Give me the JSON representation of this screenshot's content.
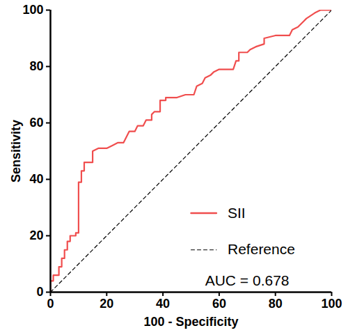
{
  "chart_data": {
    "type": "line",
    "x_label": "100 - Specificity",
    "y_label": "Sensitivity",
    "xlim": [
      0,
      100
    ],
    "ylim": [
      0,
      100
    ],
    "xticks": [
      0,
      20,
      40,
      60,
      80,
      100
    ],
    "yticks": [
      0,
      20,
      40,
      60,
      80,
      100
    ],
    "legend": "lower right",
    "annotations": [
      "AUC = 0.678"
    ],
    "series": [
      {
        "name": "SII",
        "color": "#f04e4e",
        "line_style": "solid",
        "x": [
          0,
          0,
          1,
          1,
          3,
          3,
          4,
          4,
          5,
          5,
          6,
          6,
          7,
          7,
          9,
          9,
          10,
          10,
          11,
          11,
          12,
          12,
          15,
          15,
          17,
          20,
          22,
          24,
          26,
          27,
          28,
          30,
          31,
          33,
          34,
          36,
          36,
          37,
          39,
          39,
          41,
          41,
          45,
          48,
          51,
          52,
          54,
          55,
          57,
          58,
          60,
          65,
          66,
          67,
          67,
          70,
          71,
          73,
          76,
          76,
          80,
          85,
          86,
          88,
          90,
          91,
          94,
          96,
          100
        ],
        "values": [
          0,
          4,
          4,
          6,
          6,
          9,
          9,
          12,
          12,
          15,
          15,
          18,
          18,
          20,
          20,
          21,
          21,
          39,
          39,
          43,
          43,
          46,
          46,
          50,
          51,
          51,
          52,
          53,
          53,
          55,
          57,
          57,
          59,
          59,
          61,
          61,
          63,
          64,
          64,
          68,
          68,
          69,
          69,
          70,
          70,
          73,
          74,
          76,
          77,
          78,
          79,
          79,
          82,
          82,
          85,
          85,
          86,
          87,
          88,
          90,
          91,
          91,
          93,
          94,
          96,
          97,
          99,
          100,
          100
        ]
      },
      {
        "name": "Reference",
        "color": "#000000",
        "line_style": "dashed",
        "x": [
          0,
          100
        ],
        "values": [
          0,
          100
        ]
      }
    ]
  }
}
